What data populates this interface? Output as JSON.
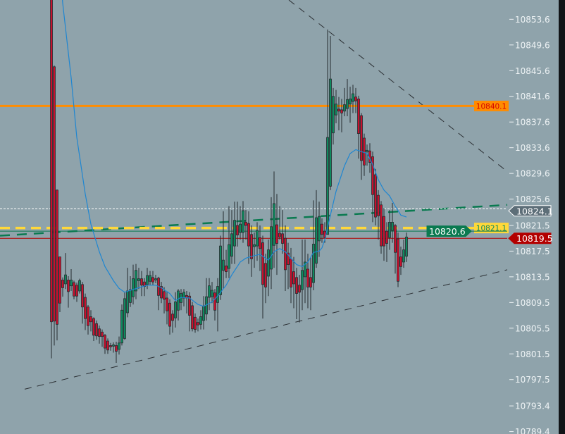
{
  "chart_data": {
    "type": "candlestick",
    "title": "",
    "xlabel": "",
    "ylabel": "",
    "ylim": [
      10788.0,
      10856.6
    ],
    "grid": false,
    "colors": {
      "background": "#8fa3ab",
      "bull": "#0f8a5f",
      "bear": "#c8102e",
      "wick": "#262b2f",
      "ma": "#1f86d1",
      "axis_text": "#eef3f5",
      "right_border": "#111417"
    },
    "y_ticks": [
      "10853.6",
      "10849.6",
      "10845.6",
      "10841.6",
      "10837.6",
      "10833.6",
      "10829.6",
      "10825.6",
      "10821.5",
      "10817.5",
      "10813.5",
      "10809.5",
      "10805.5",
      "10801.5",
      "10797.5",
      "10793.4",
      "10789.4"
    ],
    "candles_ohlc": [
      [
        10858.0,
        10859.0,
        10800.8,
        10806.5
      ],
      [
        10846.2,
        10846.4,
        10802.8,
        10806.6
      ],
      [
        10827.0,
        10827.1,
        10803.6,
        10806.1
      ],
      [
        10816.6,
        10816.6,
        10808.0,
        10809.4
      ],
      [
        10813.0,
        10813.4,
        10810.4,
        10811.8
      ],
      [
        10812.4,
        10817.2,
        10811.6,
        10813.8
      ],
      [
        10813.0,
        10813.6,
        10808.7,
        10811.2
      ],
      [
        10812.1,
        10814.7,
        10811.3,
        10813.0
      ],
      [
        10812.6,
        10812.9,
        10810.0,
        10810.5
      ],
      [
        10812.2,
        10812.6,
        10809.6,
        10810.5
      ],
      [
        10811.3,
        10813.2,
        10810.9,
        10812.9
      ],
      [
        10812.3,
        10812.7,
        10806.2,
        10808.8
      ],
      [
        10810.3,
        10810.9,
        10805.2,
        10807.0
      ],
      [
        10808.8,
        10809.1,
        10804.5,
        10805.9
      ],
      [
        10807.3,
        10808.3,
        10805.0,
        10806.5
      ],
      [
        10807.0,
        10807.2,
        10803.5,
        10804.4
      ],
      [
        10806.2,
        10806.7,
        10803.7,
        10804.3
      ],
      [
        10805.4,
        10805.9,
        10803.1,
        10804.2
      ],
      [
        10804.9,
        10805.3,
        10802.6,
        10804.2
      ],
      [
        10804.4,
        10804.6,
        10801.5,
        10802.4
      ],
      [
        10803.5,
        10803.9,
        10801.5,
        10802.1
      ],
      [
        10802.8,
        10803.2,
        10802.0,
        10802.6
      ],
      [
        10802.7,
        10803.3,
        10801.7,
        10802.9
      ],
      [
        10802.8,
        10803.4,
        10800.1,
        10801.9
      ],
      [
        10802.2,
        10804.2,
        10801.4,
        10803.2
      ],
      [
        10803.2,
        10809.2,
        10802.8,
        10808.3
      ],
      [
        10803.9,
        10811.1,
        10803.7,
        10810.1
      ],
      [
        10807.9,
        10814.9,
        10807.2,
        10811.3
      ],
      [
        10809.5,
        10813.6,
        10808.8,
        10811.5
      ],
      [
        10810.4,
        10815.4,
        10809.2,
        10813.2
      ],
      [
        10811.3,
        10815.5,
        10810.0,
        10814.5
      ],
      [
        10812.9,
        10814.9,
        10811.6,
        10813.2
      ],
      [
        10813.2,
        10814.4,
        10810.5,
        10812.2
      ],
      [
        10812.7,
        10813.3,
        10810.5,
        10812.0
      ],
      [
        10812.3,
        10814.9,
        10811.6,
        10813.7
      ],
      [
        10812.8,
        10814.4,
        10812.2,
        10813.7
      ],
      [
        10813.4,
        10814.4,
        10812.2,
        10812.7
      ],
      [
        10813.0,
        10813.8,
        10812.5,
        10813.2
      ],
      [
        10813.3,
        10813.5,
        10808.3,
        10810.6
      ],
      [
        10812.0,
        10812.7,
        10809.4,
        10810.2
      ],
      [
        10811.2,
        10811.9,
        10807.8,
        10810.0
      ],
      [
        10810.2,
        10811.1,
        10806.1,
        10808.2
      ],
      [
        10809.4,
        10810.0,
        10804.5,
        10805.8
      ],
      [
        10807.7,
        10808.3,
        10804.8,
        10806.7
      ],
      [
        10807.1,
        10811.1,
        10805.6,
        10809.6
      ],
      [
        10808.3,
        10811.6,
        10806.7,
        10811.3
      ],
      [
        10809.5,
        10811.6,
        10808.3,
        10810.9
      ],
      [
        10810.2,
        10811.6,
        10808.9,
        10811.1
      ],
      [
        10810.6,
        10811.3,
        10807.8,
        10810.2
      ],
      [
        10810.5,
        10811.1,
        10805.0,
        10807.5
      ],
      [
        10809.0,
        10809.6,
        10805.0,
        10805.4
      ],
      [
        10807.2,
        10807.8,
        10804.8,
        10805.3
      ],
      [
        10806.4,
        10807.0,
        10805.0,
        10806.0
      ],
      [
        10806.1,
        10808.3,
        10805.3,
        10807.3
      ],
      [
        10806.7,
        10810.5,
        10805.3,
        10808.9
      ],
      [
        10807.7,
        10813.3,
        10806.7,
        10810.4
      ],
      [
        10810.3,
        10813.3,
        10808.3,
        10812.1
      ],
      [
        10810.4,
        10812.7,
        10809.4,
        10811.4
      ],
      [
        10811.0,
        10811.6,
        10806.7,
        10808.3
      ],
      [
        10809.5,
        10813.3,
        10805.0,
        10812.0
      ],
      [
        10810.7,
        10819.9,
        10809.9,
        10818.3
      ],
      [
        10814.5,
        10823.7,
        10811.6,
        10816.1
      ],
      [
        10815.2,
        10817.7,
        10813.3,
        10814.3
      ],
      [
        10814.8,
        10824.5,
        10813.3,
        10818.5
      ],
      [
        10816.7,
        10823.9,
        10815.5,
        10820.2
      ],
      [
        10818.3,
        10825.2,
        10815.5,
        10822.3
      ],
      [
        10821.5,
        10825.2,
        10818.2,
        10820.0
      ],
      [
        10820.4,
        10824.5,
        10819.3,
        10821.7
      ],
      [
        10820.4,
        10825.3,
        10818.8,
        10823.8
      ],
      [
        10822.0,
        10823.9,
        10819.3,
        10821.5
      ],
      [
        10821.8,
        10823.7,
        10815.5,
        10818.3
      ],
      [
        10820.1,
        10821.5,
        10813.5,
        10816.3
      ],
      [
        10818.2,
        10820.4,
        10814.9,
        10818.5
      ],
      [
        10818.3,
        10822.0,
        10816.0,
        10820.7
      ],
      [
        10819.6,
        10821.5,
        10814.4,
        10817.9
      ],
      [
        10818.8,
        10819.9,
        10807.0,
        10812.3
      ],
      [
        10815.6,
        10817.1,
        10809.4,
        10811.9
      ],
      [
        10813.6,
        10819.3,
        10810.5,
        10817.7
      ],
      [
        10814.7,
        10825.9,
        10811.6,
        10821.3
      ],
      [
        10818.4,
        10829.9,
        10814.9,
        10824.9
      ],
      [
        10821.6,
        10826.4,
        10813.8,
        10818.7
      ],
      [
        10820.3,
        10824.5,
        10819.3,
        10819.7
      ],
      [
        10820.2,
        10823.9,
        10817.1,
        10818.7
      ],
      [
        10819.5,
        10821.5,
        10811.3,
        10814.6
      ],
      [
        10817.2,
        10818.8,
        10811.6,
        10815.4
      ],
      [
        10816.3,
        10818.0,
        10809.4,
        10811.9
      ],
      [
        10814.3,
        10816.6,
        10808.6,
        10812.4
      ],
      [
        10813.4,
        10814.9,
        10806.9,
        10810.9
      ],
      [
        10812.2,
        10813.8,
        10806.4,
        10811.1
      ],
      [
        10811.5,
        10819.3,
        10808.3,
        10814.5
      ],
      [
        10813.5,
        10819.3,
        10809.4,
        10815.8
      ],
      [
        10814.7,
        10817.1,
        10808.6,
        10811.9
      ],
      [
        10813.4,
        10816.6,
        10808.3,
        10811.9
      ],
      [
        10812.6,
        10825.4,
        10811.4,
        10818.6
      ],
      [
        10815.6,
        10827.0,
        10814.9,
        10822.7
      ],
      [
        10819.1,
        10825.2,
        10816.6,
        10822.9
      ],
      [
        10821.7,
        10822.6,
        10818.8,
        10820.1
      ],
      [
        10820.6,
        10822.0,
        10818.8,
        10819.6
      ],
      [
        10820.1,
        10852.0,
        10820.1,
        10835.2
      ],
      [
        10827.6,
        10851.0,
        10827.0,
        10844.3
      ],
      [
        10835.9,
        10842.9,
        10834.1,
        10841.6
      ],
      [
        10838.7,
        10842.6,
        10837.4,
        10840.4
      ],
      [
        10839.6,
        10841.5,
        10836.3,
        10839.3
      ],
      [
        10839.5,
        10841.2,
        10836.0,
        10839.0
      ],
      [
        10839.3,
        10842.9,
        10838.5,
        10840.3
      ],
      [
        10839.7,
        10844.3,
        10838.5,
        10841.1
      ],
      [
        10840.4,
        10843.1,
        10837.5,
        10841.2
      ],
      [
        10840.8,
        10843.4,
        10839.0,
        10842.0
      ],
      [
        10841.5,
        10842.9,
        10839.0,
        10840.9
      ],
      [
        10841.2,
        10841.7,
        10831.9,
        10835.8
      ],
      [
        10838.6,
        10839.0,
        10828.6,
        10831.6
      ],
      [
        10835.1,
        10835.8,
        10829.2,
        10830.9
      ],
      [
        10833.0,
        10834.1,
        10830.8,
        10833.2
      ],
      [
        10833.1,
        10834.3,
        10829.7,
        10831.3
      ],
      [
        10832.2,
        10833.0,
        10822.0,
        10826.3
      ],
      [
        10829.4,
        10830.3,
        10821.5,
        10822.8
      ],
      [
        10826.2,
        10827.0,
        10819.3,
        10823.0
      ],
      [
        10824.7,
        10825.3,
        10817.1,
        10818.3
      ],
      [
        10822.9,
        10824.2,
        10816.0,
        10818.3
      ],
      [
        10820.6,
        10822.0,
        10815.8,
        10818.7
      ],
      [
        10819.6,
        10823.9,
        10817.7,
        10822.0
      ],
      [
        10820.7,
        10825.0,
        10818.8,
        10822.0
      ],
      [
        10821.5,
        10821.7,
        10814.0,
        10817.3
      ],
      [
        10819.4,
        10820.4,
        10811.9,
        10812.8
      ],
      [
        10816.6,
        10818.2,
        10813.8,
        10815.1
      ],
      [
        10815.8,
        10819.3,
        10814.9,
        10817.7
      ],
      [
        10816.7,
        10820.4,
        10815.8,
        10819.7
      ]
    ],
    "moving_average": [
      [
        4,
        10856.1
      ],
      [
        7,
        10844.5
      ],
      [
        9,
        10835.2
      ],
      [
        12,
        10826.4
      ],
      [
        14,
        10821.7
      ],
      [
        17,
        10817.4
      ],
      [
        19,
        10815.1
      ],
      [
        22,
        10812.9
      ],
      [
        24,
        10811.7
      ],
      [
        26,
        10811.1
      ],
      [
        28,
        10811.4
      ],
      [
        31,
        10811.8
      ],
      [
        34,
        10812.2
      ],
      [
        37,
        10812.2
      ],
      [
        39,
        10811.8
      ],
      [
        42,
        10810.9
      ],
      [
        44,
        10809.8
      ],
      [
        46,
        10810.3
      ],
      [
        49,
        10810.2
      ],
      [
        52,
        10809.2
      ],
      [
        54,
        10808.9
      ],
      [
        57,
        10809.6
      ],
      [
        59,
        10810.5
      ],
      [
        62,
        10812.2
      ],
      [
        64,
        10813.8
      ],
      [
        67,
        10815.8
      ],
      [
        69,
        10816.4
      ],
      [
        72,
        10816.8
      ],
      [
        74,
        10817.0
      ],
      [
        76,
        10816.4
      ],
      [
        77,
        10816.1
      ],
      [
        79,
        10817.4
      ],
      [
        81,
        10817.9
      ],
      [
        83,
        10817.4
      ],
      [
        85,
        10816.4
      ],
      [
        87,
        10815.4
      ],
      [
        89,
        10815.1
      ],
      [
        91,
        10815.8
      ],
      [
        93,
        10817.3
      ],
      [
        95,
        10817.5
      ],
      [
        96,
        10818.0
      ],
      [
        97,
        10819.3
      ],
      [
        99,
        10823.1
      ],
      [
        101,
        10826.8
      ],
      [
        104,
        10830.8
      ],
      [
        106,
        10832.7
      ],
      [
        108,
        10833.3
      ],
      [
        110,
        10833.0
      ],
      [
        112,
        10832.7
      ],
      [
        114,
        10831.0
      ],
      [
        116,
        10828.6
      ],
      [
        118,
        10827.0
      ],
      [
        120,
        10826.1
      ],
      [
        122,
        10824.5
      ],
      [
        124,
        10823.1
      ],
      [
        126,
        10822.8
      ]
    ],
    "horizontal_lines": [
      {
        "price": 10840.1,
        "label": "10840.1",
        "color": "#ff8c00",
        "label_color": "#d40000",
        "style": "solid"
      },
      {
        "price": 10824.1,
        "color": "#ffffff",
        "style": "dotted"
      },
      {
        "price": 10821.1,
        "label": "10821.1",
        "color": "#ffd83a",
        "label_color": "#0f8a5f",
        "style": "dashed"
      },
      {
        "price": 10820.6,
        "color": "#0a7a50",
        "style": "solid"
      },
      {
        "price": 10819.5,
        "color": "#b00000",
        "style": "solid"
      }
    ],
    "trend_lines": [
      {
        "from": [
          -18.25,
          10819.9
        ],
        "to": [
          161.75,
          10824.7
        ],
        "color": "#0a7a50",
        "style": "dashed-thick"
      },
      {
        "from": [
          84.25,
          10856.6
        ],
        "to": [
          161.75,
          10829.9
        ],
        "color": "#2b2f33",
        "style": "dashed"
      },
      {
        "from": [
          -9.5,
          10796.0
        ],
        "to": [
          161.75,
          10814.6
        ],
        "color": "#2b2f33",
        "style": "dashed"
      }
    ],
    "price_tags": [
      {
        "value": "10824.1",
        "bg": "#5d6e78",
        "fg": "#ffffff",
        "border": "#ffffff"
      },
      {
        "value": "10820.6",
        "bg": "#0a7a50",
        "fg": "#ffffff",
        "border": "#0a7a50"
      },
      {
        "value": "10819.5",
        "bg": "#b30000",
        "fg": "#ffffff",
        "border": "#b30000"
      }
    ]
  }
}
